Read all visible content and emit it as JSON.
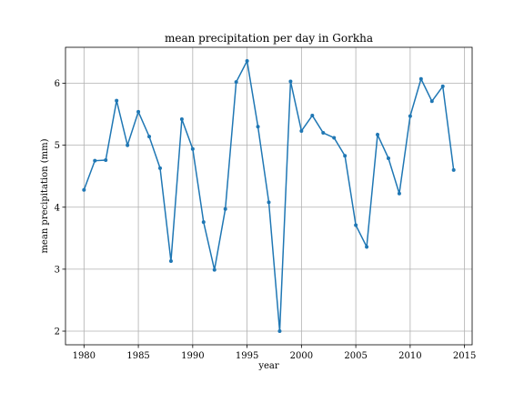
{
  "chart_data": {
    "type": "line",
    "title": "mean precipitation per day in Gorkha",
    "xlabel": "year",
    "ylabel": "mean precipitation (mm)",
    "xlim": [
      1978.3,
      2015.7
    ],
    "ylim": [
      1.78,
      6.58
    ],
    "xticks": [
      1980,
      1985,
      1990,
      1995,
      2000,
      2005,
      2010,
      2015
    ],
    "yticks": [
      2,
      3,
      4,
      5,
      6
    ],
    "grid": true,
    "line_color": "#1f77b4",
    "marker": "point",
    "x": [
      1980,
      1981,
      1982,
      1983,
      1984,
      1985,
      1986,
      1987,
      1988,
      1989,
      1990,
      1991,
      1992,
      1993,
      1994,
      1995,
      1996,
      1997,
      1998,
      1999,
      2000,
      2001,
      2002,
      2003,
      2004,
      2005,
      2006,
      2007,
      2008,
      2009,
      2010,
      2011,
      2012,
      2013,
      2014
    ],
    "y": [
      4.28,
      4.75,
      4.76,
      5.72,
      5.0,
      5.54,
      5.14,
      4.63,
      3.13,
      5.42,
      4.94,
      3.76,
      2.99,
      3.97,
      6.02,
      6.36,
      5.3,
      4.08,
      2.0,
      6.03,
      5.23,
      5.48,
      5.2,
      5.12,
      4.83,
      3.71,
      3.36,
      5.17,
      4.79,
      4.22,
      5.47,
      6.07,
      5.71,
      5.95,
      4.6
    ]
  }
}
